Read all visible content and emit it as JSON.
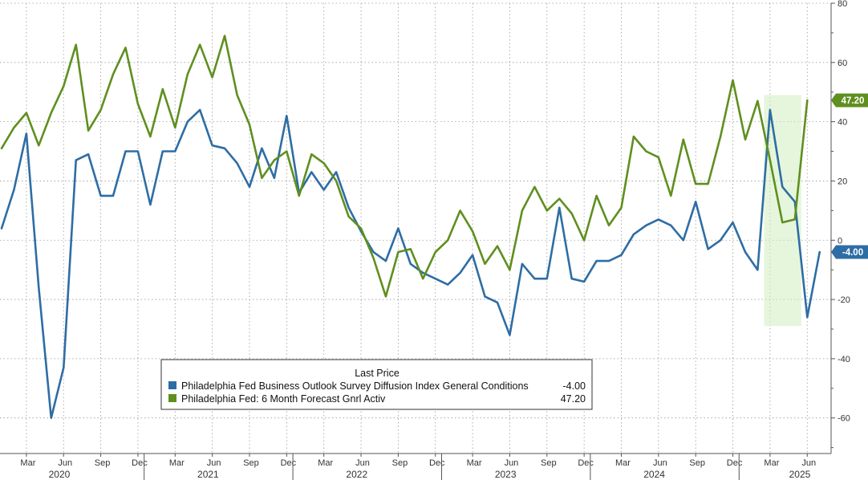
{
  "chart_data": {
    "type": "line",
    "title": "",
    "xlabel": "",
    "ylabel": "",
    "ylim": [
      -72,
      80
    ],
    "yticks": [
      80,
      60,
      40,
      20,
      0,
      -20,
      -40,
      -60
    ],
    "grid": true,
    "start_month": "2020-01",
    "month_ticks": [
      "Mar",
      "Jun",
      "Sep",
      "Dec",
      "Mar",
      "Jun",
      "Sep",
      "Dec",
      "Mar",
      "Jun",
      "Sep",
      "Dec",
      "Mar",
      "Jun",
      "Sep",
      "Dec",
      "Mar",
      "Jun",
      "Sep",
      "Dec",
      "Mar",
      "Jun"
    ],
    "years": [
      "2020",
      "2021",
      "2022",
      "2023",
      "2024",
      "2025"
    ],
    "legend": {
      "header": "Last Price",
      "position": "bottom-center"
    },
    "highlight": {
      "from_month": "2025-02",
      "to_month": "2025-05",
      "y_range": [
        -29,
        49
      ]
    },
    "series": [
      {
        "name": "Philadelphia Fed Business Outlook Survey Diffusion Index General Conditions",
        "color": "#2e6da4",
        "last_value_label": "-4.00",
        "values": [
          4,
          17,
          36,
          -16,
          -60,
          -43,
          27,
          29,
          15,
          15,
          30,
          30,
          12,
          30,
          30,
          40,
          44,
          32,
          31,
          26,
          18,
          31,
          21,
          42,
          16,
          23,
          17,
          23,
          11,
          3,
          -4,
          -7,
          4,
          -8,
          -11,
          -13,
          -15,
          -11,
          -5,
          -19,
          -21,
          -32,
          -8,
          -13,
          -13,
          11,
          -13,
          -14,
          -7,
          -7,
          -5,
          2,
          5,
          7,
          5,
          0,
          13,
          -3,
          0,
          6,
          -4,
          -10,
          44,
          18,
          13,
          -26,
          -4
        ]
      },
      {
        "name": "Philadelphia Fed: 6 Month Forecast Gnrl Activ",
        "color": "#5f8f1f",
        "last_value_label": "47.20",
        "values": [
          31,
          38,
          43,
          32,
          43,
          52,
          66,
          37,
          44,
          56,
          65,
          46,
          35,
          51,
          38,
          56,
          66,
          55,
          69,
          49,
          39,
          21,
          27,
          30,
          15,
          29,
          26,
          20,
          8,
          4,
          -6,
          -19,
          -4,
          -3,
          -13,
          -4,
          0,
          10,
          3,
          -8,
          -2,
          -10,
          10,
          18,
          10,
          14,
          9,
          0,
          15,
          5,
          11,
          35,
          30,
          28,
          15,
          34,
          19,
          19,
          35,
          54,
          34,
          47,
          27,
          6,
          7,
          47.2
        ]
      }
    ]
  }
}
